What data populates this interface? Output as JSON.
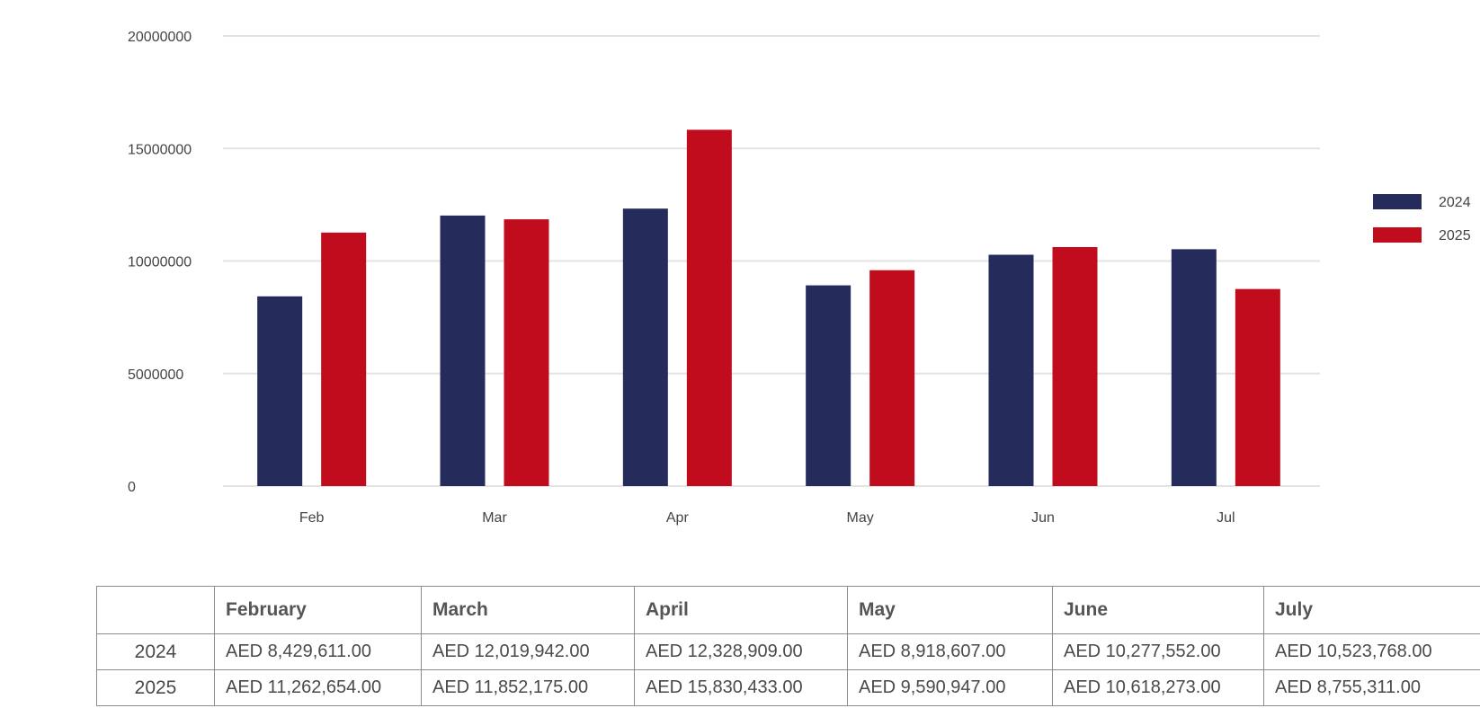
{
  "chart_data": {
    "type": "bar",
    "categories": [
      "Feb",
      "Mar",
      "Apr",
      "May",
      "Jun",
      "Jul"
    ],
    "series": [
      {
        "name": "2024",
        "color": "#252c5b",
        "values": [
          8429611,
          12019942,
          12328909,
          8918607,
          10277552,
          10523768
        ]
      },
      {
        "name": "2025",
        "color": "#c00c1c",
        "values": [
          11262654,
          11852175,
          15830433,
          9590947,
          10618273,
          8755311
        ]
      }
    ],
    "ylim": [
      0,
      20000000
    ],
    "yticks": [
      0,
      5000000,
      10000000,
      15000000,
      20000000
    ],
    "ytick_labels": [
      "0",
      "5000000",
      "10000000",
      "15000000",
      "20000000"
    ],
    "grid": true,
    "legend": "right"
  },
  "table": {
    "headers": [
      "",
      "February",
      "March",
      "April",
      "May",
      "June",
      "July"
    ],
    "rows": [
      {
        "label": "2024",
        "cells": [
          "AED 8,429,611.00",
          "AED 12,019,942.00",
          "AED 12,328,909.00",
          "AED 8,918,607.00",
          "AED 10,277,552.00",
          "AED 10,523,768.00"
        ]
      },
      {
        "label": "2025",
        "cells": [
          "AED 11,262,654.00",
          "AED 11,852,175.00",
          "AED 15,830,433.00",
          "AED 9,590,947.00",
          "AED 10,618,273.00",
          "AED 8,755,311.00"
        ]
      }
    ]
  }
}
